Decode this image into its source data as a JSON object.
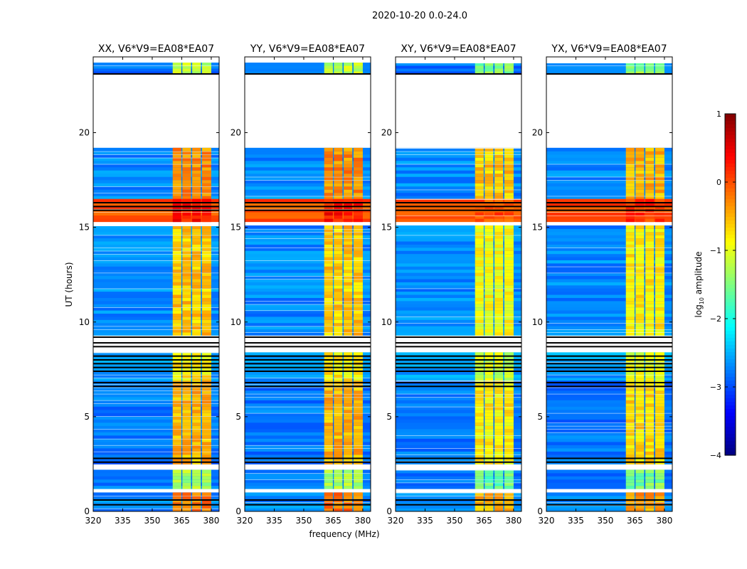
{
  "chart_data": {
    "type": "heatmap",
    "title": "2020-10-20 0.0-24.0",
    "xlabel": "frequency (MHz)",
    "ylabel": "UT (hours)",
    "xlim": [
      320,
      384
    ],
    "ylim": [
      0,
      24
    ],
    "xticks": [
      320,
      335,
      350,
      365,
      380
    ],
    "yticks": [
      0,
      5,
      10,
      15,
      20
    ],
    "panels": [
      {
        "title": "XX, V6*V9=EA08*EA07",
        "band_offset": 0.0
      },
      {
        "title": "YY, V6*V9=EA08*EA07",
        "band_offset": 0.0
      },
      {
        "title": "XY, V6*V9=EA08*EA07",
        "band_offset": -0.3
      },
      {
        "title": "YX, V6*V9=EA08*EA07",
        "band_offset": -0.2
      }
    ],
    "band_channels": [
      [
        360.4,
        364.8
      ],
      [
        365.3,
        369.7
      ],
      [
        370.3,
        374.7
      ],
      [
        375.3,
        380.0
      ]
    ],
    "time_segments": [
      {
        "start": 23.1,
        "end": 23.7,
        "background": -2.8,
        "band": -1.2
      },
      {
        "start": 16.5,
        "end": 19.2,
        "background": -2.7,
        "band": -0.3
      },
      {
        "start": 15.3,
        "end": 16.5,
        "background": 0.0,
        "band": 0.3
      },
      {
        "start": 9.3,
        "end": 15.1,
        "background": -2.7,
        "band": -0.6
      },
      {
        "start": 6.9,
        "end": 8.4,
        "background": -2.6,
        "band": -0.8
      },
      {
        "start": 2.5,
        "end": 6.9,
        "background": -2.8,
        "band": -0.5
      },
      {
        "start": 1.2,
        "end": 2.2,
        "background": -2.8,
        "band": -1.3
      },
      {
        "start": 0.0,
        "end": 1.0,
        "background": -2.7,
        "band": -0.2
      }
    ],
    "flagged_rows": [
      23.1,
      16.3,
      16.1,
      15.9,
      9.2,
      8.9,
      8.7,
      8.2,
      8.0,
      7.8,
      7.6,
      7.4,
      6.8,
      6.6,
      2.8,
      2.6,
      0.6,
      0.35
    ],
    "colorbar": {
      "label": "log",
      "label_sub": "10",
      "label_rest": " amplitude",
      "range": [
        -4,
        1
      ],
      "ticks": [
        "1",
        "0",
        "−1",
        "−2",
        "−3",
        "−4"
      ],
      "tick_values": [
        1,
        0,
        -1,
        -2,
        -3,
        -4
      ],
      "colormap": "jet"
    }
  }
}
